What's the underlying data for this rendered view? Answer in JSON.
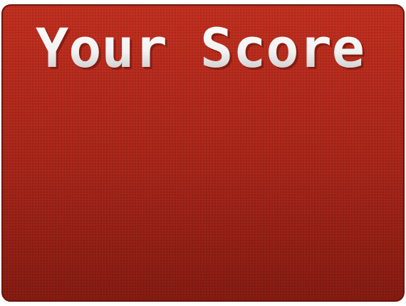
{
  "title": "Your Score"
}
